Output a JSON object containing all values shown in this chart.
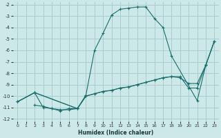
{
  "xlabel": "Humidex (Indice chaleur)",
  "bg_color": "#cce8e8",
  "grid_color": "#aacccc",
  "line_color": "#1a6e6a",
  "xlim": [
    -0.5,
    23.5
  ],
  "ylim": [
    -12.2,
    -1.8
  ],
  "xtick_labels": [
    "0",
    "1",
    "2",
    "3",
    "4",
    "5",
    "6",
    "7",
    "8",
    "9",
    "10",
    "11",
    "12",
    "13",
    "14",
    "15",
    "16",
    "17",
    "18",
    "19",
    "20",
    "21",
    "22",
    "23"
  ],
  "xticks": [
    0,
    1,
    2,
    3,
    4,
    5,
    6,
    7,
    8,
    9,
    10,
    11,
    12,
    13,
    14,
    15,
    16,
    17,
    18,
    19,
    20,
    21,
    22,
    23
  ],
  "yticks": [
    -2,
    -3,
    -4,
    -5,
    -6,
    -7,
    -8,
    -9,
    -10,
    -11,
    -12
  ],
  "series": [
    {
      "x": [
        0,
        2,
        3,
        4,
        5,
        6,
        7,
        8,
        9,
        10,
        11,
        12,
        13,
        14,
        15,
        16,
        17,
        18,
        21,
        22,
        23
      ],
      "y": [
        -10.5,
        -9.7,
        -11.0,
        -11.1,
        -11.2,
        -11.2,
        -11.1,
        -9.9,
        -6.0,
        -4.5,
        -2.9,
        -2.4,
        -2.3,
        -2.2,
        -2.2,
        -3.2,
        -4.0,
        -6.5,
        -10.4,
        -7.3,
        -5.2
      ]
    },
    {
      "x": [
        0,
        2,
        7,
        8,
        9,
        10,
        11,
        12,
        13,
        14,
        15,
        16,
        17,
        18,
        19,
        20,
        21,
        22,
        23
      ],
      "y": [
        -10.5,
        -9.7,
        -11.1,
        -10.0,
        -9.8,
        -9.6,
        -9.5,
        -9.3,
        -9.2,
        -9.0,
        -8.8,
        -8.6,
        -8.4,
        -8.3,
        -8.3,
        -9.3,
        -9.3,
        -7.3,
        -5.2
      ]
    },
    {
      "x": [
        0,
        2,
        7,
        8,
        9,
        10,
        11,
        12,
        13,
        14,
        15,
        16,
        17,
        18,
        19,
        20,
        21,
        22,
        23
      ],
      "y": [
        -10.5,
        -9.7,
        -11.1,
        -10.0,
        -9.8,
        -9.6,
        -9.5,
        -9.3,
        -9.2,
        -9.0,
        -8.8,
        -8.6,
        -8.4,
        -8.3,
        -8.4,
        -8.9,
        -8.9,
        -7.3,
        -5.2
      ]
    },
    {
      "x": [
        2,
        3,
        4,
        5,
        6,
        7
      ],
      "y": [
        -10.8,
        -10.9,
        -11.1,
        -11.3,
        -11.1,
        -11.1
      ]
    }
  ]
}
